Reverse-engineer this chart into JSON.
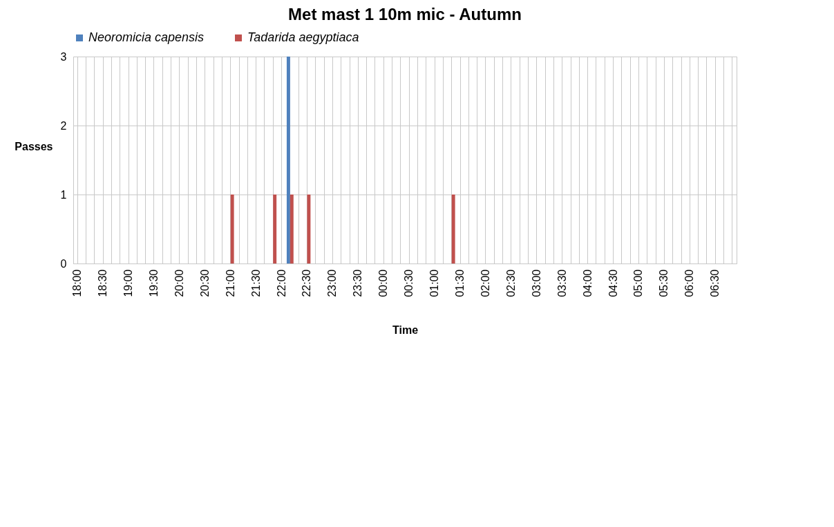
{
  "chart_data": {
    "type": "bar",
    "title": "Met mast 1 10m mic - Autumn",
    "xlabel": "Time",
    "ylabel": "Passes",
    "categories": [
      "18:00",
      null,
      null,
      "18:30",
      null,
      null,
      "19:00",
      null,
      null,
      "19:30",
      null,
      null,
      "20:00",
      null,
      null,
      "20:30",
      null,
      null,
      "21:00",
      null,
      null,
      "21:30",
      null,
      null,
      "22:00",
      null,
      null,
      "22:30",
      null,
      null,
      "23:00",
      null,
      null,
      "23:30",
      null,
      null,
      "00:00",
      null,
      null,
      "00:30",
      null,
      null,
      "01:00",
      null,
      null,
      "01:30",
      null,
      null,
      "02:00",
      null,
      null,
      "02:30",
      null,
      null,
      "03:00",
      null,
      null,
      "03:30",
      null,
      null,
      "04:00",
      null,
      null,
      "04:30",
      null,
      null,
      "05:00",
      null,
      null,
      "05:30",
      null,
      null,
      "06:00",
      null,
      null,
      "06:30",
      null,
      null
    ],
    "series": [
      {
        "name": "Neoromicia capensis",
        "color": "#4f81bd",
        "values": [
          0,
          0,
          0,
          0,
          0,
          0,
          0,
          0,
          0,
          0,
          0,
          0,
          0,
          0,
          0,
          0,
          0,
          0,
          0,
          0,
          0,
          0,
          0,
          0,
          0,
          3,
          0,
          0,
          0,
          0,
          0,
          0,
          0,
          0,
          0,
          0,
          0,
          0,
          0,
          0,
          0,
          0,
          0,
          0,
          0,
          0,
          0,
          0,
          0,
          0,
          0,
          0,
          0,
          0,
          0,
          0,
          0,
          0,
          0,
          0,
          0,
          0,
          0,
          0,
          0,
          0,
          0,
          0,
          0,
          0,
          0,
          0,
          0,
          0,
          0,
          0,
          0,
          0
        ]
      },
      {
        "name": "Tadarida aegyptiaca",
        "color": "#c0504d",
        "values": [
          0,
          0,
          0,
          0,
          0,
          0,
          0,
          0,
          0,
          0,
          0,
          0,
          0,
          0,
          0,
          0,
          0,
          0,
          1,
          0,
          0,
          0,
          0,
          1,
          0,
          1,
          0,
          1,
          0,
          0,
          0,
          0,
          0,
          0,
          0,
          0,
          0,
          0,
          0,
          0,
          0,
          0,
          0,
          0,
          1,
          0,
          0,
          0,
          0,
          0,
          0,
          0,
          0,
          0,
          0,
          0,
          0,
          0,
          0,
          0,
          0,
          0,
          0,
          0,
          0,
          0,
          0,
          0,
          0,
          0,
          0,
          0,
          0,
          0,
          0,
          0,
          0,
          0
        ]
      }
    ],
    "ylim": [
      0,
      3
    ],
    "yticks": [
      0,
      1,
      2,
      3
    ],
    "grid": true,
    "legend": "top"
  }
}
